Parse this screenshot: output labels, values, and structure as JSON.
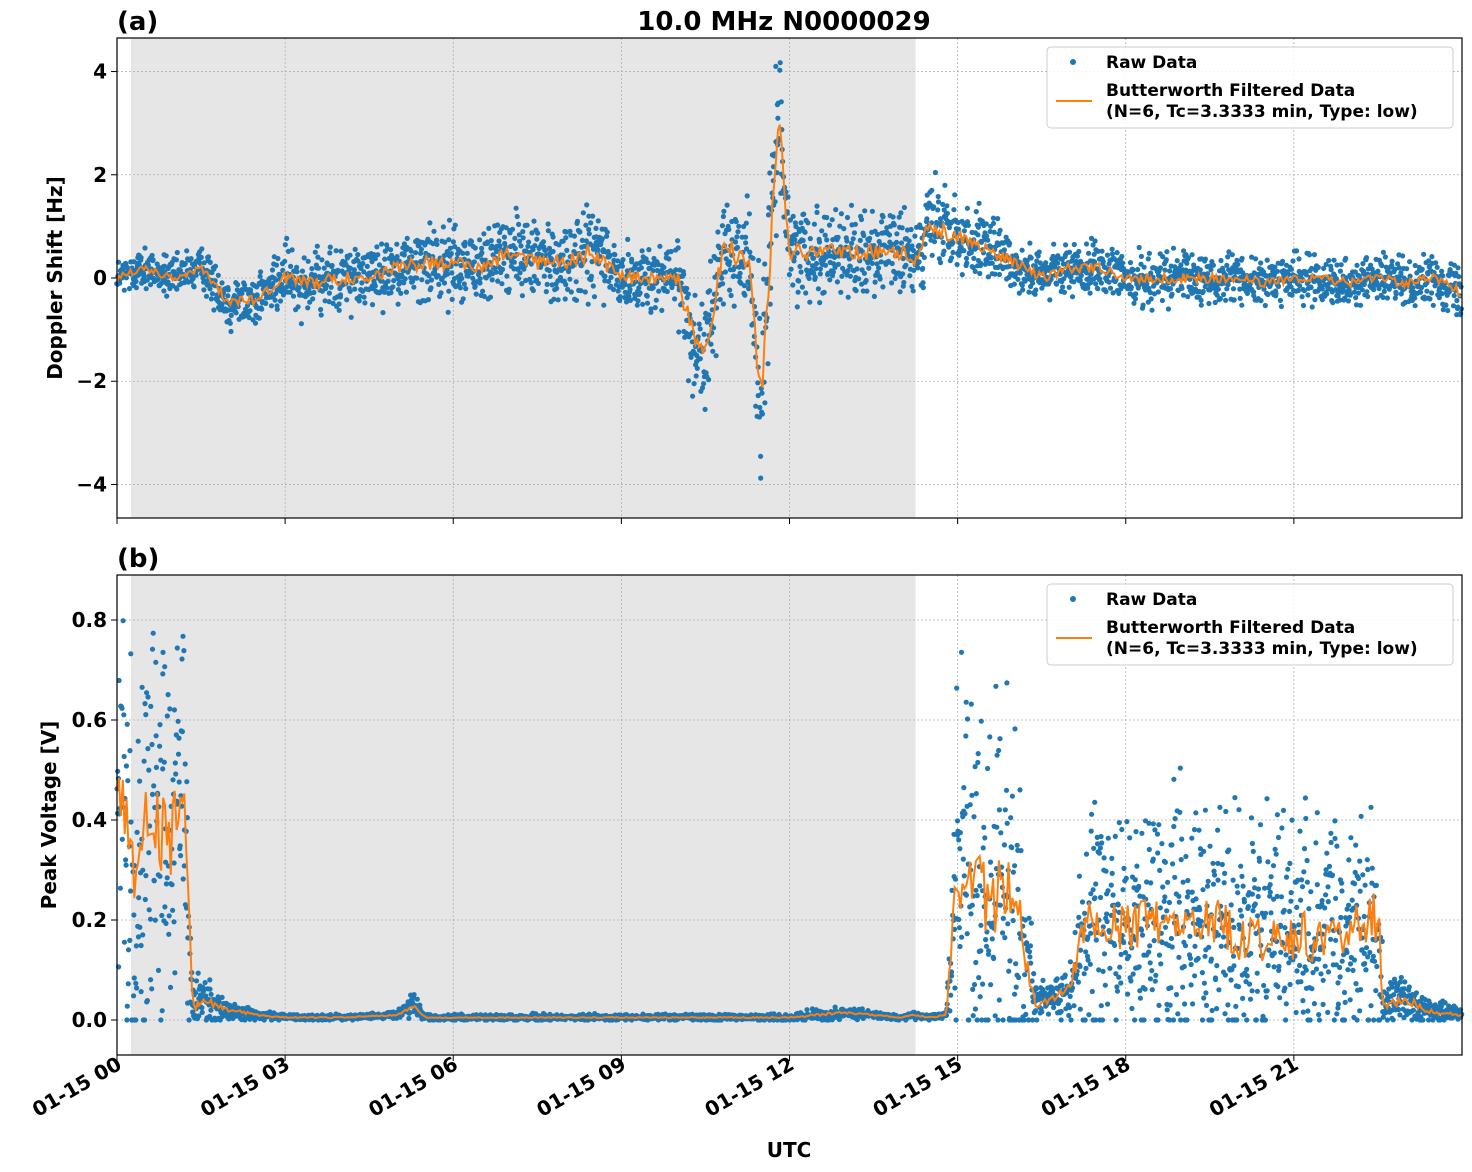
{
  "figure": {
    "title": "10.0 MHz N0000029",
    "xlabel": "UTC",
    "colors": {
      "raw": "#1f77b4",
      "filtered": "#ff7f0e",
      "night_shade": "#e6e6e6",
      "grid": "#b0b0b0"
    }
  },
  "chart_data": [
    {
      "type": "scatter",
      "panel_label": "(a)",
      "ylabel": "Doppler Shift [Hz]",
      "x_unit": "hours UTC since 01-15 00:00",
      "xlim": [
        0,
        24
      ],
      "ylim": [
        -4.65,
        4.65
      ],
      "yticks": [
        -4,
        -2,
        0,
        2,
        4
      ],
      "ytick_labels": [
        "−4",
        "−2",
        "0",
        "2",
        "4"
      ],
      "xticks": [
        0,
        3,
        6,
        9,
        12,
        15,
        18,
        21
      ],
      "xtick_labels": [
        "01-15 00",
        "01-15 03",
        "01-15 06",
        "01-15 09",
        "01-15 12",
        "01-15 15",
        "01-15 18",
        "01-15 21"
      ],
      "grid": true,
      "legend_position": "top-right",
      "night_shading": [
        0.25,
        14.25
      ],
      "series": [
        {
          "name": "Raw Data",
          "kind": "points",
          "x": [
            0,
            0.5,
            1,
            1.5,
            2,
            2.5,
            3,
            3.5,
            4,
            4.5,
            5,
            5.5,
            6,
            6.5,
            7,
            7.5,
            8,
            8.5,
            9,
            9.5,
            10,
            10.3,
            10.5,
            10.8,
            11,
            11.3,
            11.5,
            11.8,
            12,
            12.5,
            13,
            13.5,
            14,
            14.2,
            14.5,
            15,
            15.5,
            16,
            16.5,
            17,
            17.5,
            18,
            18.5,
            19,
            19.5,
            20,
            20.5,
            21,
            21.5,
            22,
            22.5,
            23,
            23.5,
            24
          ],
          "y": [
            0,
            0.2,
            0,
            0.2,
            -0.5,
            -0.4,
            0,
            -0.1,
            0,
            0,
            0.2,
            0.3,
            0.3,
            0.2,
            0.5,
            0.3,
            0.3,
            0.5,
            0,
            0,
            0,
            -1.2,
            -1.5,
            0.5,
            0.5,
            0.3,
            -2.5,
            3.2,
            0.5,
            0.5,
            0.5,
            0.5,
            0.5,
            0.3,
            1,
            0.8,
            0.6,
            0.3,
            0,
            0.2,
            0.2,
            0,
            0,
            0,
            0,
            0,
            -0.1,
            0,
            0,
            -0.1,
            0,
            -0.1,
            0,
            -0.3
          ],
          "spread": [
            0.3,
            0.3,
            0.3,
            0.3,
            0.4,
            0.4,
            0.5,
            0.5,
            0.5,
            0.5,
            0.5,
            0.6,
            0.6,
            0.6,
            0.6,
            0.6,
            0.6,
            0.8,
            0.5,
            0.5,
            0.6,
            0.9,
            0.8,
            0.9,
            0.9,
            0.9,
            1.6,
            1.0,
            0.7,
            0.7,
            0.7,
            0.6,
            0.6,
            0.5,
            0.7,
            0.6,
            0.5,
            0.4,
            0.4,
            0.4,
            0.4,
            0.4,
            0.4,
            0.4,
            0.4,
            0.35,
            0.35,
            0.35,
            0.35,
            0.35,
            0.35,
            0.35,
            0.35,
            0.45
          ],
          "y_max": 4.2,
          "y_min": -4.2
        },
        {
          "name": "Butterworth Filtered Data\n(N=6, Tc=3.3333 min, Type: low)",
          "kind": "line",
          "x": [
            0,
            0.5,
            1,
            1.5,
            2,
            2.5,
            3,
            3.5,
            4,
            4.5,
            5,
            5.5,
            6,
            6.5,
            7,
            7.5,
            8,
            8.5,
            9,
            9.5,
            10,
            10.3,
            10.5,
            10.8,
            11,
            11.3,
            11.5,
            11.8,
            12,
            12.5,
            13,
            13.5,
            14,
            14.2,
            14.5,
            15,
            15.5,
            16,
            16.5,
            17,
            17.5,
            18,
            18.5,
            19,
            19.5,
            20,
            20.5,
            21,
            21.5,
            22,
            22.5,
            23,
            23.5,
            24
          ],
          "y": [
            0,
            0.2,
            0,
            0.2,
            -0.5,
            -0.4,
            0,
            -0.1,
            0,
            0,
            0.2,
            0.3,
            0.3,
            0.2,
            0.5,
            0.3,
            0.3,
            0.5,
            0,
            0,
            0,
            -1.2,
            -1.5,
            0.5,
            0.5,
            0.3,
            -2.5,
            3.2,
            0.5,
            0.5,
            0.5,
            0.5,
            0.5,
            0.3,
            1,
            0.8,
            0.6,
            0.3,
            0,
            0.2,
            0.2,
            0,
            0,
            0,
            0,
            0,
            -0.1,
            0,
            0,
            -0.1,
            0,
            -0.1,
            0,
            -0.3
          ]
        }
      ]
    },
    {
      "type": "scatter",
      "panel_label": "(b)",
      "ylabel": "Peak Voltage [V]",
      "x_unit": "hours UTC since 01-15 00:00",
      "xlim": [
        0,
        24
      ],
      "ylim": [
        -0.07,
        0.89
      ],
      "yticks": [
        0,
        0.2,
        0.4,
        0.6,
        0.8
      ],
      "ytick_labels": [
        "0.0",
        "0.2",
        "0.4",
        "0.6",
        "0.8"
      ],
      "xticks": [
        0,
        3,
        6,
        9,
        12,
        15,
        18,
        21
      ],
      "xtick_labels": [
        "01-15 00",
        "01-15 03",
        "01-15 06",
        "01-15 09",
        "01-15 12",
        "01-15 15",
        "01-15 18",
        "01-15 21"
      ],
      "grid": true,
      "legend_position": "top-right",
      "night_shading": [
        0.25,
        14.25
      ],
      "series": [
        {
          "name": "Raw Data",
          "kind": "points",
          "x": [
            0,
            0.3,
            0.6,
            0.9,
            1.2,
            1.35,
            1.5,
            2,
            2.5,
            3,
            4,
            5,
            5.3,
            5.5,
            6,
            7,
            8,
            9,
            10,
            11,
            12,
            12.5,
            13,
            13.5,
            14,
            14.2,
            14.5,
            14.8,
            15,
            15.5,
            16,
            16.4,
            16.6,
            17,
            17.3,
            18,
            18.5,
            19,
            19.5,
            20,
            20.5,
            21,
            21.5,
            22,
            22.5,
            22.6,
            23,
            23.5,
            24
          ],
          "y": [
            0.45,
            0.3,
            0.4,
            0.35,
            0.45,
            0.02,
            0.04,
            0.02,
            0.01,
            0.005,
            0.005,
            0.01,
            0.03,
            0.005,
            0.005,
            0.005,
            0.005,
            0.005,
            0.005,
            0.005,
            0.005,
            0.01,
            0.015,
            0.01,
            0.005,
            0.01,
            0.005,
            0.01,
            0.3,
            0.25,
            0.25,
            0.03,
            0.04,
            0.06,
            0.2,
            0.18,
            0.2,
            0.17,
            0.2,
            0.17,
            0.16,
            0.17,
            0.16,
            0.17,
            0.2,
            0.03,
            0.04,
            0.015,
            0.01
          ],
          "spread": [
            0.35,
            0.35,
            0.35,
            0.35,
            0.35,
            0.04,
            0.04,
            0.015,
            0.01,
            0.005,
            0.005,
            0.005,
            0.02,
            0.005,
            0.005,
            0.005,
            0.005,
            0.005,
            0.005,
            0.005,
            0.005,
            0.01,
            0.01,
            0.005,
            0.005,
            0.005,
            0.005,
            0.005,
            0.3,
            0.3,
            0.3,
            0.03,
            0.03,
            0.05,
            0.2,
            0.2,
            0.2,
            0.2,
            0.2,
            0.2,
            0.2,
            0.2,
            0.2,
            0.2,
            0.25,
            0.04,
            0.04,
            0.02,
            0.01
          ],
          "y_max": 0.84,
          "y_min": 0
        },
        {
          "name": "Butterworth Filtered Data\n(N=6, Tc=3.3333 min, Type: low)",
          "kind": "line",
          "x": [
            0,
            0.3,
            0.6,
            0.9,
            1.2,
            1.35,
            1.5,
            2,
            2.5,
            3,
            4,
            5,
            5.3,
            5.5,
            6,
            7,
            8,
            9,
            10,
            11,
            12,
            12.5,
            13,
            13.5,
            14,
            14.2,
            14.5,
            14.8,
            15,
            15.5,
            16,
            16.4,
            16.6,
            17,
            17.3,
            18,
            18.5,
            19,
            19.5,
            20,
            20.5,
            21,
            21.5,
            22,
            22.5,
            22.6,
            23,
            23.5,
            24
          ],
          "y": [
            0.45,
            0.3,
            0.4,
            0.35,
            0.45,
            0.02,
            0.04,
            0.02,
            0.01,
            0.005,
            0.005,
            0.01,
            0.03,
            0.005,
            0.005,
            0.005,
            0.005,
            0.005,
            0.005,
            0.005,
            0.005,
            0.01,
            0.015,
            0.01,
            0.005,
            0.01,
            0.005,
            0.01,
            0.3,
            0.25,
            0.25,
            0.03,
            0.04,
            0.06,
            0.2,
            0.18,
            0.2,
            0.17,
            0.2,
            0.17,
            0.16,
            0.17,
            0.16,
            0.17,
            0.2,
            0.03,
            0.04,
            0.015,
            0.01
          ]
        }
      ]
    }
  ]
}
